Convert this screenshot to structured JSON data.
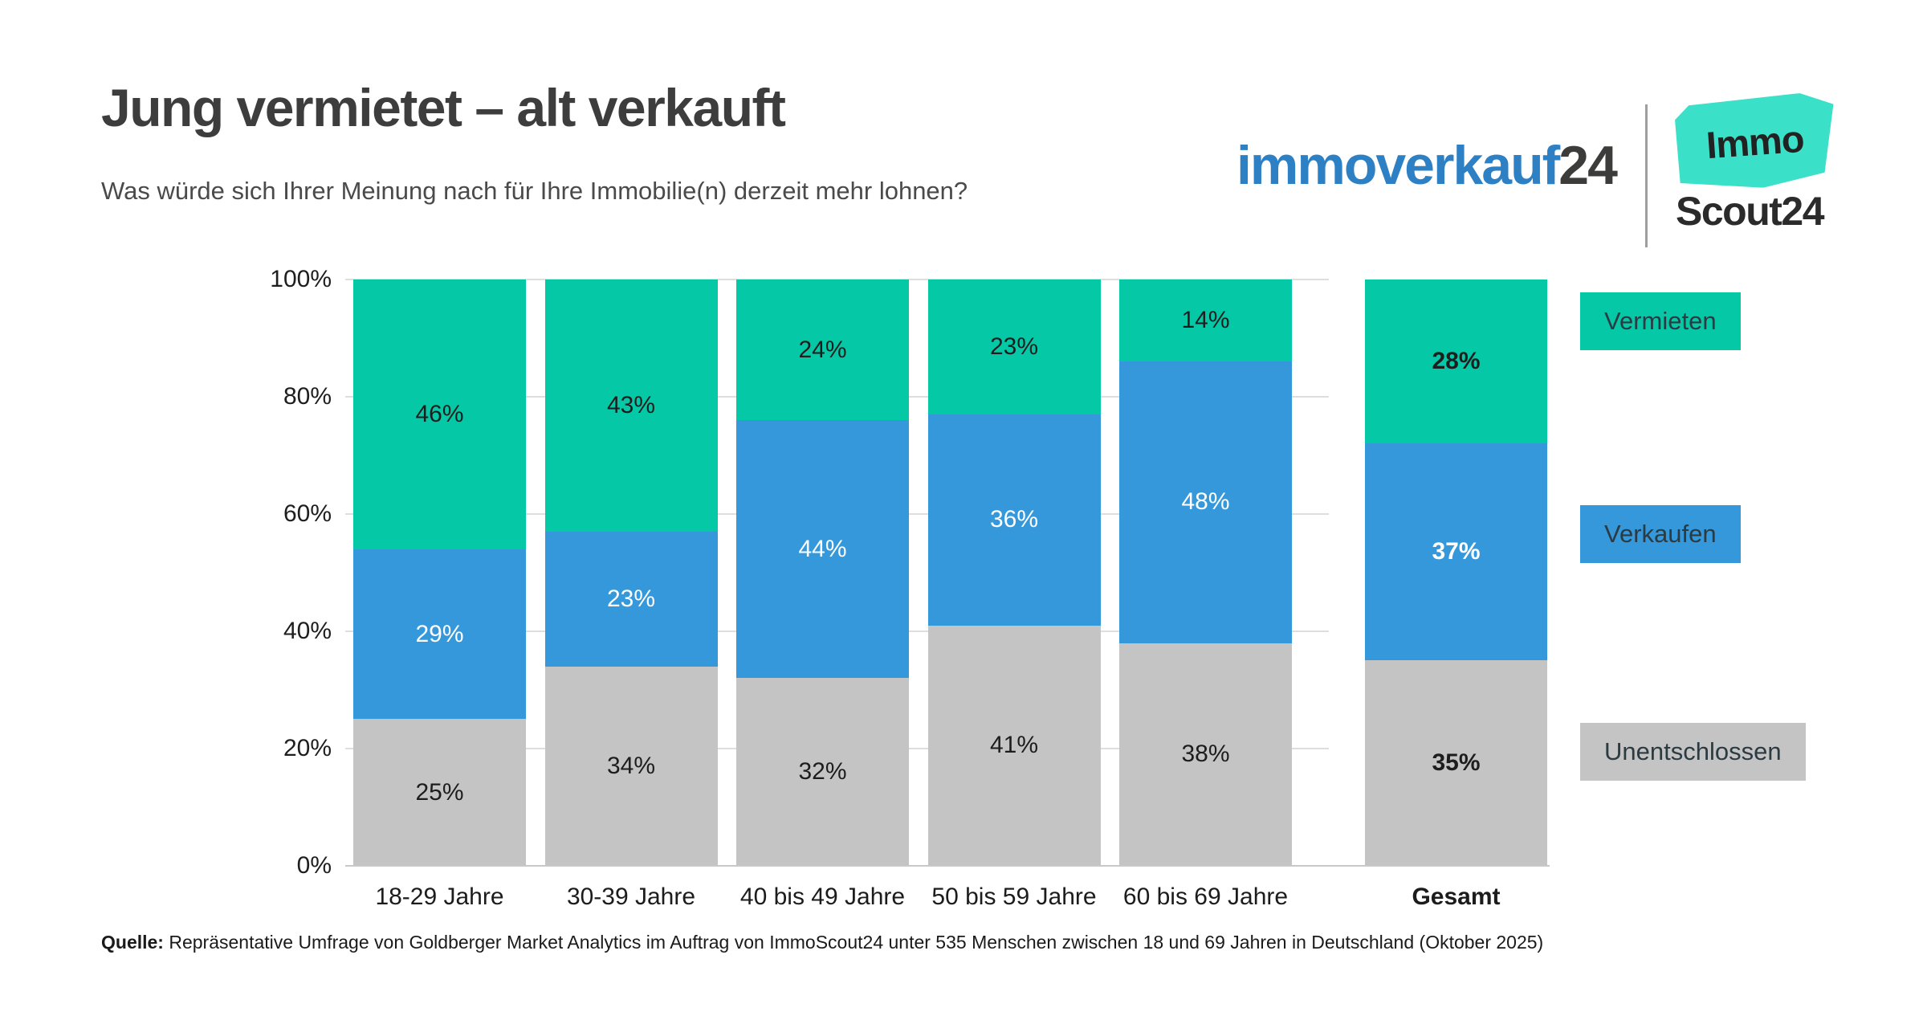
{
  "header": {
    "title": "Jung vermietet – alt verkauft",
    "subtitle": "Was würde sich Ihrer Meinung nach für Ihre Immobilie(n) derzeit mehr lohnen?"
  },
  "branding": {
    "immoverkauf_word": "immoverkauf",
    "immoverkauf_number": "24",
    "immoscout_line1": "Immo",
    "immoscout_line2": "Scout24"
  },
  "colors": {
    "vermieten_teal": "#05c8a7",
    "verkaufen_blue": "#3598db",
    "unentschlossen_gray": "#c4c4c4",
    "brand_blue": "#2e80c5",
    "scout_teal": "#3be0c9",
    "grid": "#dedede",
    "axis": "#c8c8c8",
    "text_dark": "#1d1d1d"
  },
  "chart_data": {
    "type": "bar",
    "stacked": true,
    "percent_scale": true,
    "unit": "%",
    "categories": [
      "18-29 Jahre",
      "30-39 Jahre",
      "40 bis 49 Jahre",
      "50 bis 59 Jahre",
      "60 bis 69 Jahre",
      "Gesamt"
    ],
    "series": [
      {
        "name": "Vermieten",
        "color": "#05c8a7",
        "values": [
          46,
          43,
          24,
          23,
          14,
          28
        ]
      },
      {
        "name": "Verkaufen",
        "color": "#3598db",
        "values": [
          29,
          23,
          44,
          36,
          48,
          37
        ]
      },
      {
        "name": "Unentschlossen",
        "color": "#c4c4c4",
        "values": [
          25,
          34,
          32,
          41,
          38,
          35
        ]
      }
    ],
    "stack_order_top_to_bottom": [
      "Vermieten",
      "Verkaufen",
      "Unentschlossen"
    ],
    "y_ticks": [
      "100%",
      "80%",
      "60%",
      "40%",
      "20%",
      "0%"
    ],
    "ylim": [
      0,
      100
    ],
    "grid": true,
    "legend_position": "right",
    "highlight_category": "Gesamt",
    "title": "Jung vermietet – alt verkauft",
    "xlabel": "",
    "ylabel": ""
  },
  "source": {
    "label": "Quelle:",
    "text": "Repräsentative Umfrage von Goldberger Market Analytics im Auftrag von ImmoScout24 unter 535 Menschen zwischen 18 und 69 Jahren in Deutschland (Oktober 2025)"
  }
}
